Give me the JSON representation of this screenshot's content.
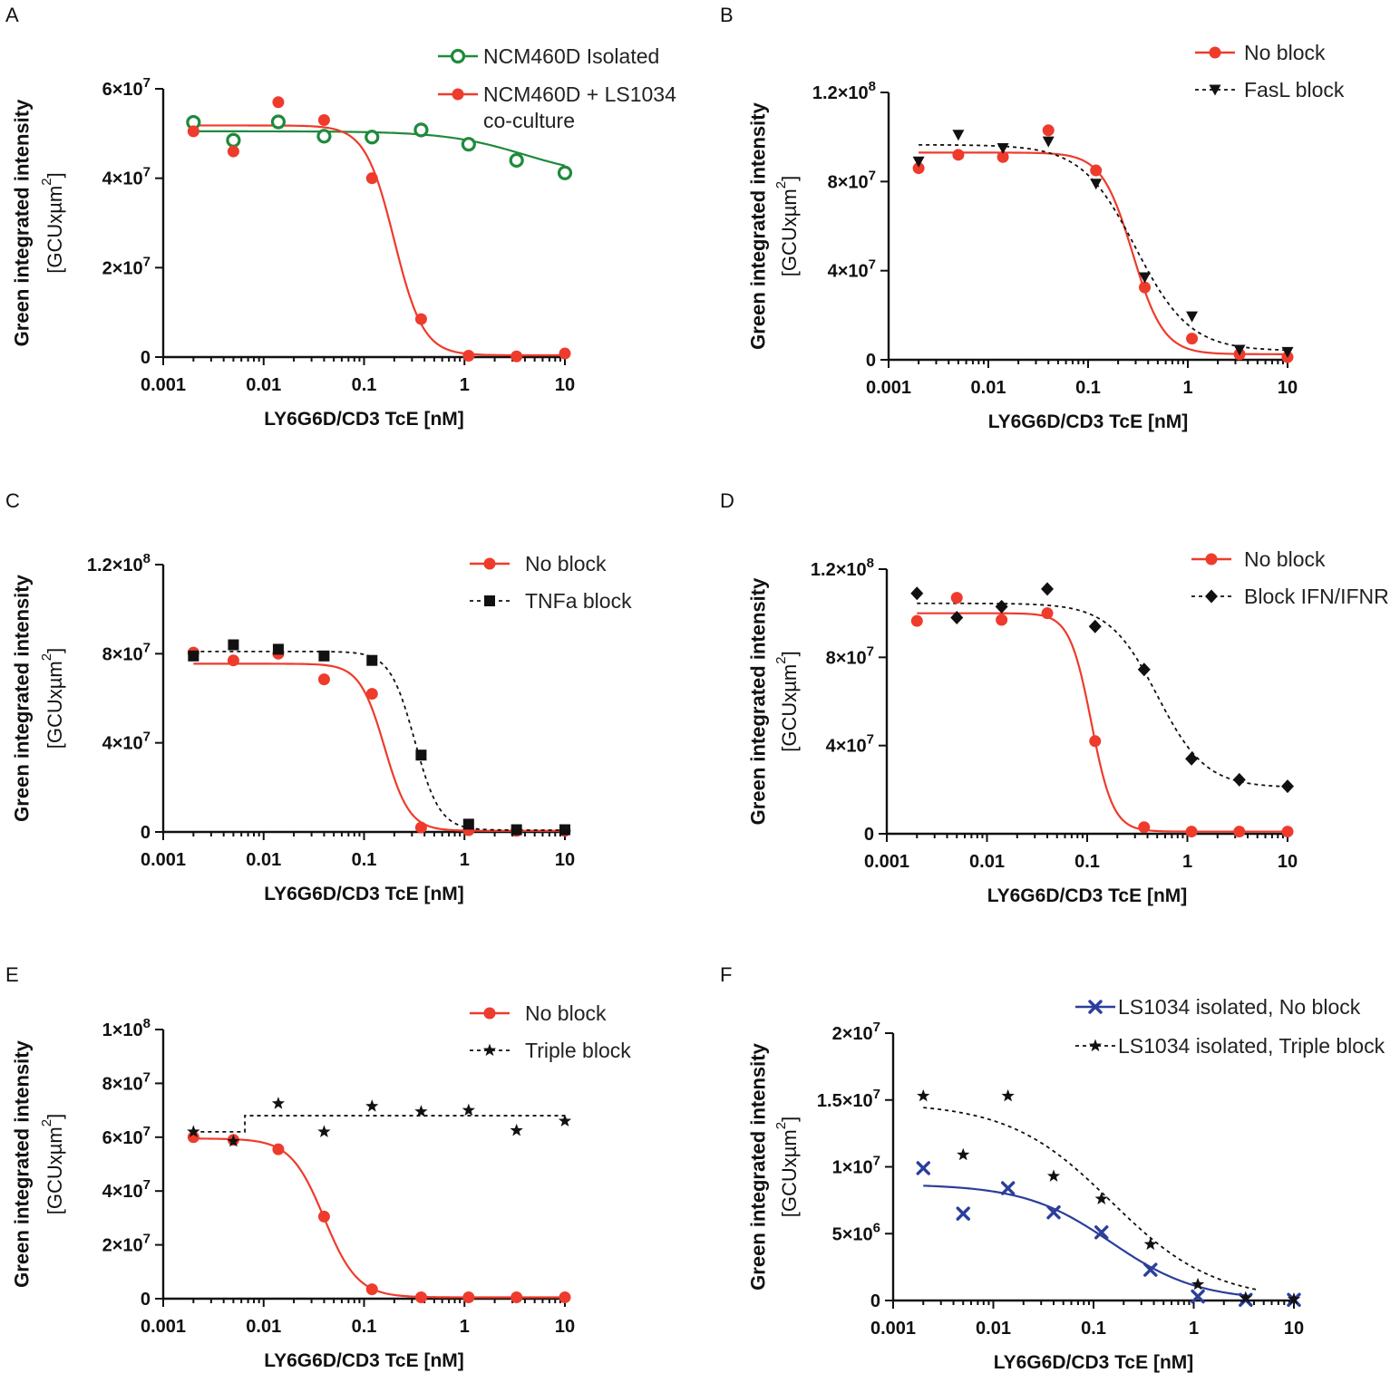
{
  "figure": {
    "panel_letters": [
      "A",
      "B",
      "C",
      "D",
      "E",
      "F"
    ]
  },
  "colors": {
    "red": "#ee3b2c",
    "green": "#1f8a3c",
    "black": "#111111",
    "blue": "#2b3e9a"
  },
  "chart_data": [
    {
      "panel": "A",
      "type": "scatter",
      "xlabel": "LY6G6D/CD3 TcE [nM]",
      "ylabel": "Green integrated intensity",
      "ylabel_unit": "[GCUxµm²]",
      "xscale": "log",
      "xlim": [
        0.001,
        10
      ],
      "xticks": [
        {
          "v": 0.001,
          "label": "0.001"
        },
        {
          "v": 0.01,
          "label": "0.01"
        },
        {
          "v": 0.1,
          "label": "0.1"
        },
        {
          "v": 1,
          "label": "1"
        },
        {
          "v": 10,
          "label": "10"
        }
      ],
      "ylim": [
        0,
        60000000
      ],
      "yticks": [
        {
          "v": 0,
          "label": "0"
        },
        {
          "v": 20000000,
          "label": "2×10⁷"
        },
        {
          "v": 40000000,
          "label": "4×10⁷"
        },
        {
          "v": 60000000,
          "label": "6×10⁷"
        }
      ],
      "legend_position": "top-right",
      "series": [
        {
          "name": "NCM460D Isolated",
          "color": "green",
          "marker": "open-circle",
          "line": "solid",
          "x": [
            0.002,
            0.005,
            0.014,
            0.04,
            0.12,
            0.37,
            1.1,
            3.3,
            10
          ],
          "y": [
            52500000,
            48500000,
            52600000,
            49400000,
            49200000,
            50800000,
            47600000,
            44000000,
            41200000
          ],
          "fit": {
            "top": 50500000,
            "bottom": 40000000,
            "ec50": 4,
            "hill": 1.1
          }
        },
        {
          "name": "NCM460D + LS1034 co-culture",
          "legend_lines": [
            "NCM460D + LS1034",
            "co-culture"
          ],
          "color": "red",
          "marker": "filled-circle",
          "line": "solid",
          "x": [
            0.002,
            0.005,
            0.014,
            0.04,
            0.12,
            0.37,
            1.1,
            3.3,
            10
          ],
          "y": [
            50500000,
            46000000,
            57000000,
            53000000,
            40000000,
            8500000,
            300000,
            150000,
            800000
          ],
          "fit": {
            "top": 51800000,
            "bottom": 400000,
            "ec50": 0.2,
            "hill": 3.0
          }
        }
      ]
    },
    {
      "panel": "B",
      "type": "scatter",
      "xlabel": "LY6G6D/CD3 TcE [nM]",
      "ylabel": "Green integrated intensity",
      "ylabel_unit": "[GCUxµm²]",
      "xscale": "log",
      "xlim": [
        0.001,
        10
      ],
      "xticks": [
        {
          "v": 0.001,
          "label": "0.001"
        },
        {
          "v": 0.01,
          "label": "0.01"
        },
        {
          "v": 0.1,
          "label": "0.1"
        },
        {
          "v": 1,
          "label": "1"
        },
        {
          "v": 10,
          "label": "10"
        }
      ],
      "ylim": [
        0,
        120000000
      ],
      "yticks": [
        {
          "v": 0,
          "label": "0"
        },
        {
          "v": 40000000,
          "label": "4×10⁷"
        },
        {
          "v": 80000000,
          "label": "8×10⁷"
        },
        {
          "v": 120000000,
          "label": "1.2×10⁸"
        }
      ],
      "legend_position": "top-right",
      "series": [
        {
          "name": "No block",
          "color": "red",
          "marker": "filled-circle",
          "line": "solid",
          "x": [
            0.002,
            0.005,
            0.014,
            0.04,
            0.12,
            0.37,
            1.1,
            3.3,
            10
          ],
          "y": [
            86000000,
            92000000,
            91000000,
            103000000,
            85000000,
            32500000,
            9500000,
            2500000,
            1200000
          ],
          "fit": {
            "top": 93000000,
            "bottom": 2500000,
            "ec50": 0.28,
            "hill": 2.8
          }
        },
        {
          "name": "FasL block",
          "color": "black",
          "marker": "triangle-down",
          "line": "dashed",
          "x": [
            0.002,
            0.005,
            0.014,
            0.04,
            0.12,
            0.37,
            1.1,
            3.3,
            10
          ],
          "y": [
            89000000,
            101000000,
            95000000,
            98000000,
            79000000,
            37000000,
            19500000,
            4500000,
            3500000
          ],
          "fit": {
            "top": 96500000,
            "bottom": 4000000,
            "ec50": 0.3,
            "hill": 1.6
          }
        }
      ]
    },
    {
      "panel": "C",
      "type": "scatter",
      "xlabel": "LY6G6D/CD3 TcE [nM]",
      "ylabel": "Green integrated intensity",
      "ylabel_unit": "[GCUxµm²]",
      "xscale": "log",
      "xlim": [
        0.001,
        10
      ],
      "xticks": [
        {
          "v": 0.001,
          "label": "0.001"
        },
        {
          "v": 0.01,
          "label": "0.01"
        },
        {
          "v": 0.1,
          "label": "0.1"
        },
        {
          "v": 1,
          "label": "1"
        },
        {
          "v": 10,
          "label": "10"
        }
      ],
      "ylim": [
        0,
        120000000
      ],
      "yticks": [
        {
          "v": 0,
          "label": "0"
        },
        {
          "v": 40000000,
          "label": "4×10⁷"
        },
        {
          "v": 80000000,
          "label": "8×10⁷"
        },
        {
          "v": 120000000,
          "label": "1.2×10⁸"
        }
      ],
      "legend_position": "top-right",
      "series": [
        {
          "name": "No block",
          "color": "red",
          "marker": "filled-circle",
          "line": "solid",
          "x": [
            0.002,
            0.005,
            0.014,
            0.04,
            0.12,
            0.37,
            1.1,
            3.3,
            10
          ],
          "y": [
            80500000,
            77000000,
            80000000,
            68500000,
            62000000,
            2000000,
            800000,
            500000,
            500000
          ],
          "fit": {
            "top": 75500000,
            "bottom": 500000,
            "ec50": 0.16,
            "hill": 3.5
          }
        },
        {
          "name": "TNFa block",
          "color": "black",
          "marker": "square",
          "line": "dashed",
          "x": [
            0.002,
            0.005,
            0.014,
            0.04,
            0.12,
            0.37,
            1.1,
            3.3,
            10
          ],
          "y": [
            79000000,
            84000000,
            82000000,
            79000000,
            77000000,
            34500000,
            3500000,
            1000000,
            1000000
          ],
          "fit": {
            "top": 81000000,
            "bottom": 800000,
            "ec50": 0.32,
            "hill": 3.5
          }
        }
      ]
    },
    {
      "panel": "D",
      "type": "scatter",
      "xlabel": "LY6G6D/CD3 TcE [nM]",
      "ylabel": "Green integrated intensity",
      "ylabel_unit": "[GCUxµm²]",
      "xscale": "log",
      "xlim": [
        0.001,
        10
      ],
      "xticks": [
        {
          "v": 0.001,
          "label": "0.001"
        },
        {
          "v": 0.01,
          "label": "0.01"
        },
        {
          "v": 0.1,
          "label": "0.1"
        },
        {
          "v": 1,
          "label": "1"
        },
        {
          "v": 10,
          "label": "10"
        }
      ],
      "ylim": [
        0,
        120000000
      ],
      "yticks": [
        {
          "v": 0,
          "label": "0"
        },
        {
          "v": 40000000,
          "label": "4×10⁷"
        },
        {
          "v": 80000000,
          "label": "8×10⁷"
        },
        {
          "v": 120000000,
          "label": "1.2×10⁸"
        }
      ],
      "legend_position": "top-right",
      "series": [
        {
          "name": "No block",
          "color": "red",
          "marker": "filled-circle",
          "line": "solid",
          "x": [
            0.002,
            0.005,
            0.014,
            0.04,
            0.12,
            0.37,
            1.1,
            3.3,
            10
          ],
          "y": [
            96500000,
            107000000,
            97000000,
            100000000,
            42000000,
            3000000,
            1000000,
            1000000,
            1000000
          ],
          "fit": {
            "top": 100000000,
            "bottom": 1000000,
            "ec50": 0.11,
            "hill": 4.0
          }
        },
        {
          "name": "Block IFN/IFNR",
          "color": "black",
          "marker": "diamond",
          "line": "dashed",
          "x": [
            0.002,
            0.005,
            0.014,
            0.04,
            0.12,
            0.37,
            1.1,
            3.3,
            10
          ],
          "y": [
            109000000,
            98000000,
            103000000,
            111000000,
            94000000,
            74500000,
            34000000,
            24500000,
            21500000
          ],
          "fit": {
            "top": 104500000,
            "bottom": 21000000,
            "ec50": 0.5,
            "hill": 1.8
          }
        }
      ]
    },
    {
      "panel": "E",
      "type": "scatter",
      "xlabel": "LY6G6D/CD3 TcE [nM]",
      "ylabel": "Green integrated intensity",
      "ylabel_unit": "[GCUxµm²]",
      "xscale": "log",
      "xlim": [
        0.001,
        10
      ],
      "xticks": [
        {
          "v": 0.001,
          "label": "0.001"
        },
        {
          "v": 0.01,
          "label": "0.01"
        },
        {
          "v": 0.1,
          "label": "0.1"
        },
        {
          "v": 1,
          "label": "1"
        },
        {
          "v": 10,
          "label": "10"
        }
      ],
      "ylim": [
        0,
        100000000
      ],
      "yticks": [
        {
          "v": 0,
          "label": "0"
        },
        {
          "v": 20000000,
          "label": "2×10⁷"
        },
        {
          "v": 40000000,
          "label": "4×10⁷"
        },
        {
          "v": 60000000,
          "label": "6×10⁷"
        },
        {
          "v": 80000000,
          "label": "8×10⁷"
        },
        {
          "v": 100000000,
          "label": "1×10⁸"
        }
      ],
      "legend_position": "top-right",
      "series": [
        {
          "name": "No block",
          "color": "red",
          "marker": "filled-circle",
          "line": "solid",
          "x": [
            0.002,
            0.005,
            0.014,
            0.04,
            0.12,
            0.37,
            1.1,
            3.3,
            10
          ],
          "y": [
            60000000,
            59000000,
            55500000,
            30500000,
            3500000,
            500000,
            500000,
            500000,
            500000
          ],
          "fit": {
            "top": 59500000,
            "bottom": 500000,
            "ec50": 0.04,
            "hill": 2.6
          }
        },
        {
          "name": "Triple block",
          "color": "black",
          "marker": "star",
          "line": "dashed",
          "x": [
            0.002,
            0.005,
            0.014,
            0.04,
            0.12,
            0.37,
            1.1,
            3.3,
            10
          ],
          "y": [
            62000000,
            58500000,
            72500000,
            62000000,
            71500000,
            69500000,
            70000000,
            62500000,
            66000000
          ],
          "step": {
            "x_break": 0.0065,
            "y_low": 62000000,
            "y_high": 68000000
          }
        }
      ]
    },
    {
      "panel": "F",
      "type": "scatter",
      "xlabel": "LY6G6D/CD3 TcE [nM]",
      "ylabel": "Green integrated intensity",
      "ylabel_unit": "[GCUxµm²]",
      "xscale": "log",
      "xlim": [
        0.001,
        10
      ],
      "xticks": [
        {
          "v": 0.001,
          "label": "0.001"
        },
        {
          "v": 0.01,
          "label": "0.01"
        },
        {
          "v": 0.1,
          "label": "0.1"
        },
        {
          "v": 1,
          "label": "1"
        },
        {
          "v": 10,
          "label": "10"
        }
      ],
      "ylim": [
        0,
        20000000
      ],
      "yticks": [
        {
          "v": 0,
          "label": "0"
        },
        {
          "v": 5000000,
          "label": "5×10⁶"
        },
        {
          "v": 10000000,
          "label": "1×10⁷"
        },
        {
          "v": 15000000,
          "label": "1.5×10⁷"
        },
        {
          "v": 20000000,
          "label": "2×10⁷"
        }
      ],
      "legend_position": "top-right",
      "series": [
        {
          "name": "LS1034 isolated, No block",
          "color": "blue",
          "marker": "cross",
          "line": "solid",
          "x": [
            0.002,
            0.005,
            0.014,
            0.04,
            0.12,
            0.37,
            1.1,
            3.3,
            10
          ],
          "y": [
            9900000,
            6500000,
            8400000,
            6600000,
            5100000,
            2300000,
            300000,
            50000,
            50000
          ],
          "fit": {
            "top": 8700000,
            "bottom": 0,
            "ec50": 0.15,
            "hill": 1.0,
            "x_end": 3.5
          }
        },
        {
          "name": "LS1034 isolated, Triple block",
          "color": "black",
          "marker": "star",
          "line": "dashed",
          "x": [
            0.002,
            0.005,
            0.014,
            0.04,
            0.12,
            0.37,
            1.1,
            3.3,
            10
          ],
          "y": [
            15300000,
            10900000,
            15300000,
            9300000,
            7600000,
            4200000,
            1200000,
            200000,
            100000
          ],
          "fit": {
            "top": 14800000,
            "bottom": 0,
            "ec50": 0.15,
            "hill": 0.85,
            "x_end": 4.5
          }
        }
      ]
    }
  ]
}
